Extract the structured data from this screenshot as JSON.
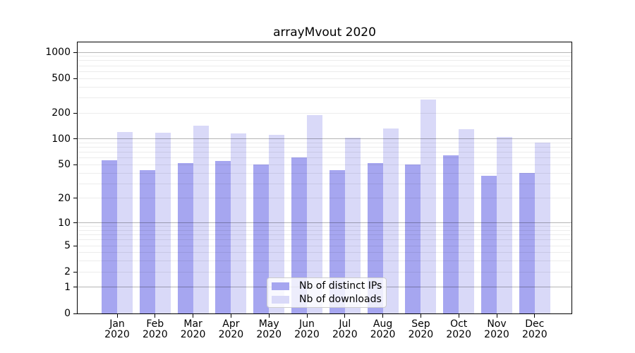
{
  "title": "arrayMvout 2020",
  "chart_data": {
    "type": "bar",
    "title": "arrayMvout 2020",
    "categories": [
      "Jan",
      "Feb",
      "Mar",
      "Apr",
      "May",
      "Jun",
      "Jul",
      "Aug",
      "Sep",
      "Oct",
      "Nov",
      "Dec"
    ],
    "year": "2020",
    "series": [
      {
        "name": "Nb of distinct IPs",
        "color": "#a6a6f0",
        "values": [
          57,
          43,
          52,
          56,
          50,
          61,
          43,
          52,
          50,
          64,
          37,
          40
        ]
      },
      {
        "name": "Nb of downloads",
        "color": "#d9d9f8",
        "values": [
          121,
          119,
          144,
          117,
          112,
          188,
          104,
          132,
          286,
          131,
          105,
          90
        ]
      }
    ],
    "yscale": "log1p",
    "ylim": [
      0,
      1300
    ],
    "y_ticks": [
      0,
      1,
      2,
      5,
      10,
      20,
      50,
      100,
      200,
      500,
      1000
    ],
    "y_major_grid": [
      1,
      10,
      100,
      1000
    ],
    "y_minor_grid": [
      2,
      3,
      4,
      5,
      6,
      7,
      8,
      9,
      20,
      30,
      40,
      50,
      60,
      70,
      80,
      90,
      200,
      300,
      400,
      500,
      600,
      700,
      800,
      900
    ],
    "grid": true,
    "legend_position": "lower center",
    "xlabel": "",
    "ylabel": ""
  },
  "colors": {
    "bar_ips": "#a6a6f0",
    "bar_downloads": "#d9d9f8",
    "axis": "#000000",
    "legend_border": "#cccccc"
  }
}
